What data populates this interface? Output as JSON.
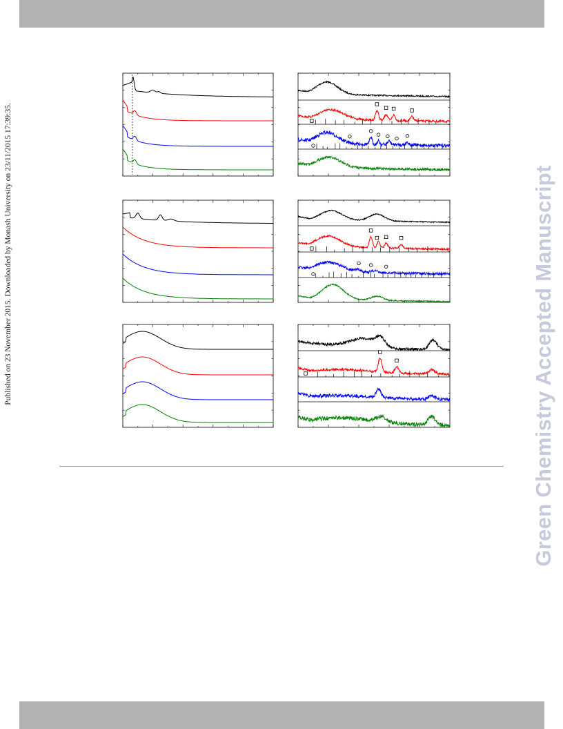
{
  "side_note": "Published on 23 November 2015. Downloaded by Monash University on 23/11/2015 17:39:35.",
  "watermark": "Green Chemistry Accepted Manuscript",
  "colors": {
    "bar": "#b3b3b3",
    "trace1": "#000000",
    "trace2": "#ff0000",
    "trace3": "#0000ff",
    "trace4": "#008000"
  },
  "chart_data": [
    {
      "type": "line",
      "panel": "left-top",
      "traces": 4,
      "dashed_reference_line": true
    },
    {
      "type": "line",
      "panel": "right-top",
      "traces": 4,
      "reference_markers": [
        "square",
        "circle"
      ]
    },
    {
      "type": "line",
      "panel": "left-middle",
      "traces": 4
    },
    {
      "type": "line",
      "panel": "right-middle",
      "traces": 4,
      "reference_markers": [
        "square",
        "circle"
      ]
    },
    {
      "type": "line",
      "panel": "left-bottom",
      "traces": 4
    },
    {
      "type": "line",
      "panel": "right-bottom",
      "traces": 4,
      "reference_markers": [
        "square"
      ]
    }
  ]
}
